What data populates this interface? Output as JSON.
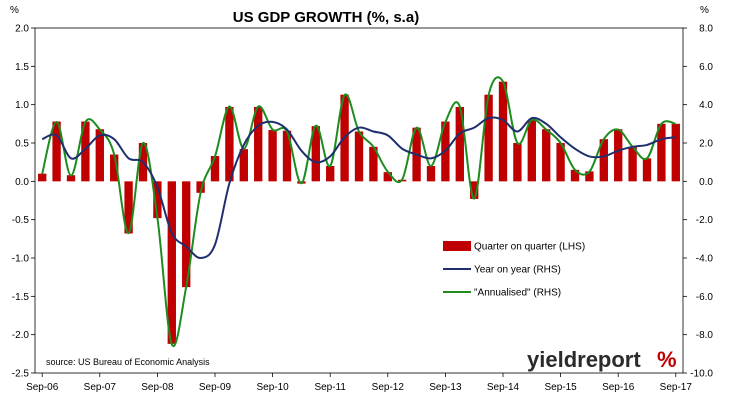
{
  "chart_data": {
    "type": "bar",
    "title": "US GDP GROWTH (%, s.a)",
    "left_unit": "%",
    "right_unit": "%",
    "source": "source: US Bureau of Economic Analysis",
    "logo_text": "yieldreport",
    "logo_symbol": "%",
    "x_tick_labels": [
      "Sep-06",
      "Sep-07",
      "Sep-08",
      "Sep-09",
      "Sep-10",
      "Sep-11",
      "Sep-12",
      "Sep-13",
      "Sep-14",
      "Sep-15",
      "Sep-16",
      "Sep-17"
    ],
    "y_left": {
      "min": -2.5,
      "max": 2.0,
      "ticks": [
        "2.0",
        "1.5",
        "1.0",
        "0.5",
        "0.0",
        "-0.5",
        "-1.0",
        "-1.5",
        "-2.0",
        "-2.5"
      ]
    },
    "y_right": {
      "min": -10.0,
      "max": 8.0,
      "ticks": [
        "8.0",
        "6.0",
        "4.0",
        "2.0",
        "0.0",
        "-2.0",
        "-4.0",
        "-6.0",
        "-8.0",
        "-10.0"
      ]
    },
    "categories": [
      "Sep-06",
      "Dec-06",
      "Mar-07",
      "Jun-07",
      "Sep-07",
      "Dec-07",
      "Mar-08",
      "Jun-08",
      "Sep-08",
      "Dec-08",
      "Mar-09",
      "Jun-09",
      "Sep-09",
      "Dec-09",
      "Mar-10",
      "Jun-10",
      "Sep-10",
      "Dec-10",
      "Mar-11",
      "Jun-11",
      "Sep-11",
      "Dec-11",
      "Mar-12",
      "Jun-12",
      "Sep-12",
      "Dec-12",
      "Mar-13",
      "Jun-13",
      "Sep-13",
      "Dec-13",
      "Mar-14",
      "Jun-14",
      "Sep-14",
      "Dec-14",
      "Mar-15",
      "Jun-15",
      "Sep-15",
      "Dec-15",
      "Mar-16",
      "Jun-16",
      "Sep-16",
      "Dec-16",
      "Mar-17",
      "Jun-17",
      "Sep-17"
    ],
    "series": [
      {
        "name": "Quarter on quarter (LHS)",
        "type": "bar",
        "axis": "left",
        "color": "#c00000",
        "values": [
          0.1,
          0.78,
          0.08,
          0.78,
          0.68,
          0.35,
          -0.68,
          0.5,
          -0.48,
          -2.12,
          -1.38,
          -0.15,
          0.33,
          0.97,
          0.42,
          0.97,
          0.67,
          0.66,
          -0.03,
          0.72,
          0.2,
          1.13,
          0.65,
          0.45,
          0.12,
          0.02,
          0.7,
          0.2,
          0.78,
          0.97,
          -0.23,
          1.13,
          1.3,
          0.5,
          0.8,
          0.68,
          0.5,
          0.15,
          0.13,
          0.55,
          0.68,
          0.45,
          0.3,
          0.75,
          0.75
        ]
      },
      {
        "name": "Year on year (RHS)",
        "type": "line",
        "axis": "right",
        "color": "#1f2f6e",
        "values": [
          2.2,
          2.4,
          1.2,
          1.7,
          2.4,
          2.2,
          1.2,
          1.0,
          -0.3,
          -2.7,
          -3.4,
          -4.0,
          -3.3,
          -0.1,
          1.9,
          2.9,
          3.1,
          2.7,
          1.6,
          1.0,
          1.3,
          2.3,
          2.8,
          2.6,
          2.4,
          1.7,
          1.4,
          1.2,
          1.6,
          2.5,
          2.8,
          3.3,
          3.2,
          2.6,
          3.3,
          3.0,
          2.3,
          1.7,
          1.3,
          1.3,
          1.6,
          1.8,
          1.9,
          2.2,
          2.3
        ]
      },
      {
        "name": "\"Annualised\" (RHS)",
        "type": "line",
        "axis": "right",
        "color": "#1e8c1e",
        "values": [
          0.4,
          3.1,
          0.3,
          3.1,
          2.7,
          1.4,
          -2.7,
          2.0,
          -1.9,
          -8.5,
          -5.5,
          -0.6,
          1.3,
          3.9,
          1.7,
          3.9,
          2.7,
          2.6,
          -0.1,
          2.9,
          0.8,
          4.5,
          2.6,
          1.8,
          0.5,
          0.1,
          2.8,
          0.8,
          3.1,
          3.9,
          -0.9,
          4.5,
          5.2,
          2.0,
          3.2,
          2.7,
          2.0,
          0.6,
          0.5,
          2.2,
          2.7,
          1.8,
          1.2,
          3.0,
          3.0
        ]
      }
    ],
    "legend_position": "center-right",
    "grid": false
  }
}
